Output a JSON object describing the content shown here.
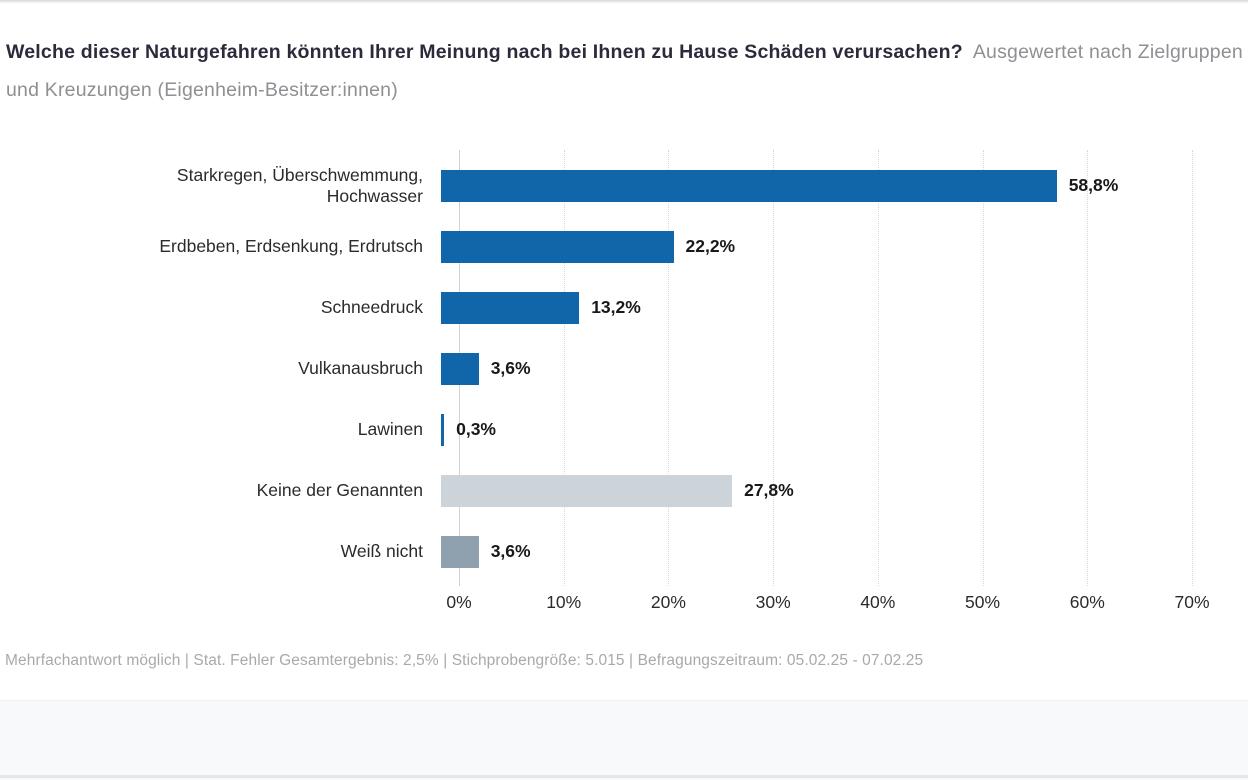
{
  "header": {
    "title_bold": "Welche dieser Naturgefahren könnten Ihrer Meinung nach bei Ihnen zu Hause Schäden verursachen?",
    "title_gray": "Ausgewertet nach Zielgruppen und Kreuzungen (Eigenheim-Besitzer:innen)"
  },
  "chart_data": {
    "type": "bar",
    "orientation": "horizontal",
    "title": "Welche dieser Naturgefahren könnten Ihrer Meinung nach bei Ihnen zu Hause Schäden verursachen? Ausgewertet nach Zielgruppen und Kreuzungen (Eigenheim-Besitzer:innen)",
    "categories": [
      "Starkregen, Überschwemmung,\nHochwasser",
      "Erdbeben, Erdsenkung, Erdrutsch",
      "Schneedruck",
      "Vulkanausbruch",
      "Lawinen",
      "Keine der Genannten",
      "Weiß nicht"
    ],
    "values": [
      58.8,
      22.2,
      13.2,
      3.6,
      0.3,
      27.8,
      3.6
    ],
    "value_labels": [
      "58,8%",
      "22,2%",
      "13,2%",
      "3,6%",
      "0,3%",
      "27,8%",
      "3,6%"
    ],
    "bar_colors": [
      "#1066a9",
      "#1066a9",
      "#1066a9",
      "#1066a9",
      "#1066a9",
      "#ccd4da",
      "#8fa1af"
    ],
    "xlabel": "",
    "ylabel": "",
    "xlim": [
      0,
      70
    ],
    "x_ticks": [
      {
        "value": 0,
        "label": "0%"
      },
      {
        "value": 10,
        "label": "10%"
      },
      {
        "value": 20,
        "label": "20%"
      },
      {
        "value": 30,
        "label": "30%"
      },
      {
        "value": 40,
        "label": "40%"
      },
      {
        "value": 50,
        "label": "50%"
      },
      {
        "value": 60,
        "label": "60%"
      },
      {
        "value": 70,
        "label": "70%"
      }
    ],
    "grid": "vertical-dotted",
    "legend": "none"
  },
  "footer": {
    "note": "Mehrfachantwort möglich | Stat. Fehler Gesamtergebnis: 2,5% | Stichprobengröße: 5.015 | Befragungszeitraum: 05.02.25 - 07.02.25"
  },
  "colors": {
    "bar_blue": "#1066a9",
    "bar_light_gray": "#ccd4da",
    "bar_medium_gray": "#8fa1af",
    "title_dark": "#2e2a3c",
    "title_gray": "#8f8f94",
    "footer_gray": "#a9a9ab",
    "gridline": "#d7d7d9"
  }
}
